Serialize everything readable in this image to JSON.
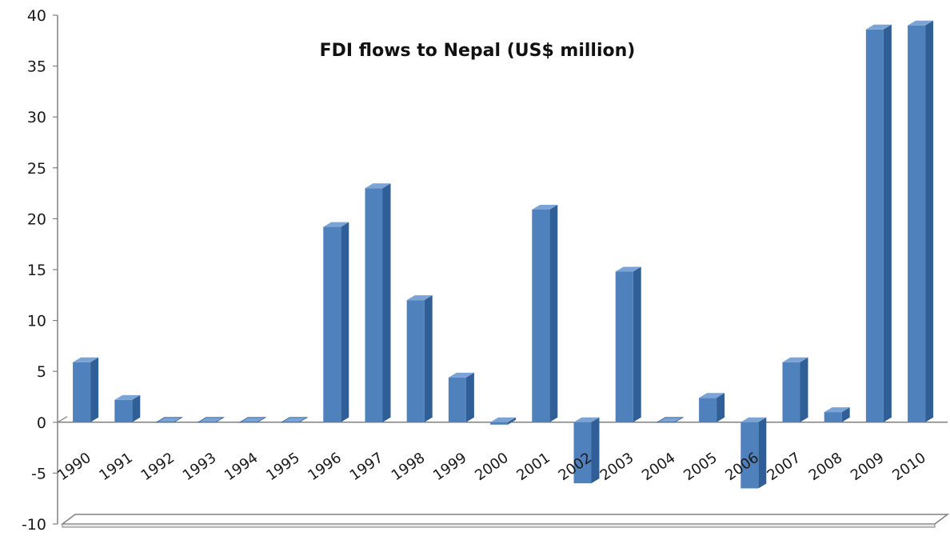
{
  "chart_data": {
    "type": "bar",
    "title": "FDI flows to Nepal (US$ million)",
    "xlabel": "",
    "ylabel": "",
    "categories": [
      "1990",
      "1991",
      "1992",
      "1993",
      "1994",
      "1995",
      "1996",
      "1997",
      "1998",
      "1999",
      "2000",
      "2001",
      "2002",
      "2003",
      "2004",
      "2005",
      "2006",
      "2007",
      "2008",
      "2009",
      "2010"
    ],
    "values": [
      5.9,
      2.2,
      0,
      0,
      0,
      0,
      19.2,
      23.0,
      12.0,
      4.4,
      -0.2,
      20.9,
      -6.0,
      14.8,
      0,
      2.4,
      -6.5,
      5.9,
      1.0,
      38.6,
      39.0
    ],
    "ylim": [
      -10,
      40
    ],
    "yticks": [
      -10,
      -5,
      0,
      5,
      10,
      15,
      20,
      25,
      30,
      35,
      40
    ],
    "grid": false,
    "legend": "none",
    "colors": {
      "bar_front": "#4f81bd",
      "bar_side": "#2f5f96",
      "bar_top": "#7ba3d6",
      "axis": "#808080"
    }
  }
}
